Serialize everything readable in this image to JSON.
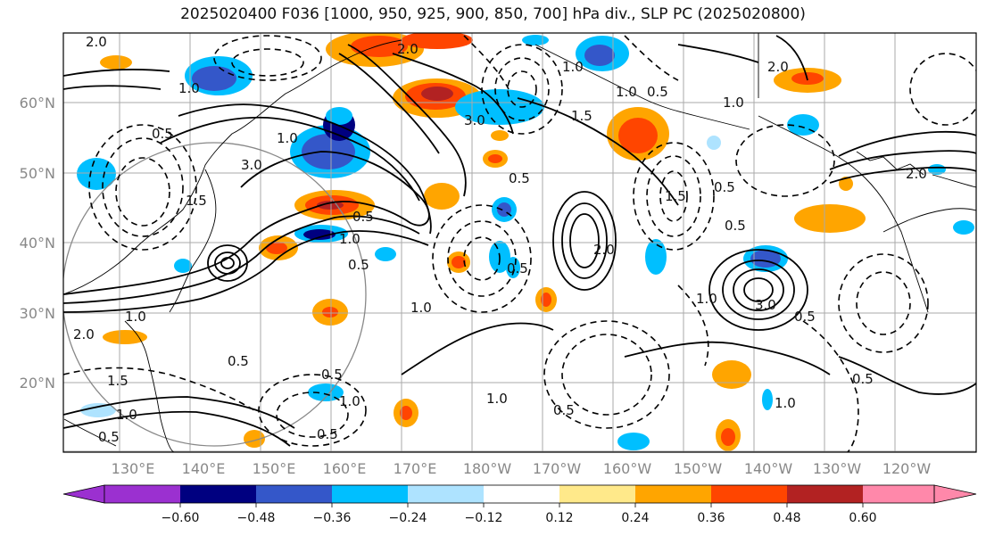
{
  "title": "2025020400 F036 [1000, 950, 925, 900, 850, 700] hPa div., SLP PC (2025020800)",
  "lat_labels": [
    "60°N",
    "50°N",
    "40°N",
    "30°N",
    "20°N"
  ],
  "lon_labels": [
    "130°E",
    "140°E",
    "150°E",
    "160°E",
    "170°E",
    "180°W",
    "170°W",
    "160°W",
    "150°W",
    "140°W",
    "130°W",
    "120°W"
  ],
  "colorbar": {
    "colors": [
      "#9b30d0",
      "#000080",
      "#3457c9",
      "#00bfff",
      "#aee3ff",
      "#ffffff",
      "#ffe98a",
      "#ffa500",
      "#ff4500",
      "#b22222",
      "#ff88aa"
    ],
    "tick_labels": [
      "−0.60",
      "−0.48",
      "−0.36",
      "−0.24",
      "−0.12",
      "0.12",
      "0.24",
      "0.36",
      "0.48",
      "0.60"
    ]
  },
  "contour_labels": [
    "2.0",
    "1.0",
    "0.5",
    "1.5",
    "3.0",
    "2.0",
    "1.0",
    "0.5",
    "1.0",
    "1.5",
    "0.5",
    "1.0",
    "2.0",
    "0.5",
    "1.0",
    "0.5",
    "3.0",
    "0.5",
    "1.0",
    "0.5",
    "2.0",
    "1.0",
    "0.5",
    "1.0",
    "0.5",
    "1.5",
    "2.0",
    "1.0",
    "1.5",
    "0.5",
    "3.0",
    "2.0",
    "1.0",
    "0.5",
    "1.0",
    "0.5",
    "1.0",
    "0.5",
    "0.5",
    "0.5",
    "1.0"
  ]
}
